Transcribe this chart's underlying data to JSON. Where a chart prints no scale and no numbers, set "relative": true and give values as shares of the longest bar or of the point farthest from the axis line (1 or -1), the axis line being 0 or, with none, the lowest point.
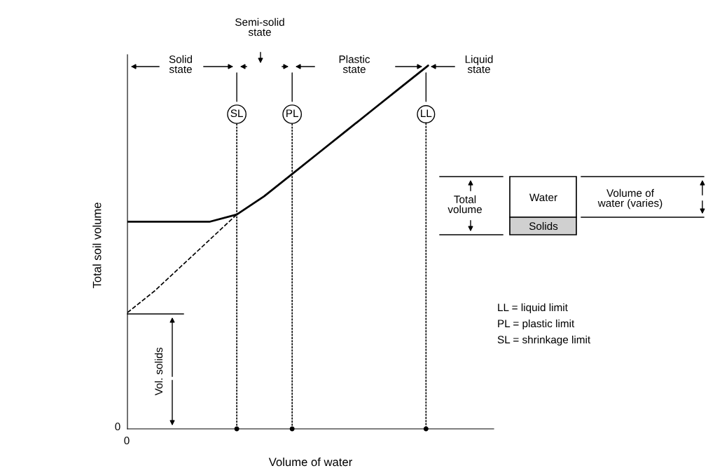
{
  "chart_data": {
    "type": "line",
    "relative": true,
    "xlabel": "Volume of water",
    "ylabel": "Total soil volume",
    "categories": [
      null,
      null,
      null,
      null,
      null,
      null,
      null,
      null,
      null,
      null,
      null,
      null,
      null,
      null
    ],
    "series": [
      {
        "color": "#000000",
        "line_style": "solid",
        "values": [
          0.57,
          0.57,
          0.57,
          0.57,
          0.59,
          0.64,
          0.7,
          0.76,
          0.82,
          0.88,
          0.94,
          1.0,
          null,
          null
        ]
      },
      {
        "color": "#000000",
        "line_style": "dashed",
        "values": [
          0.32,
          0.38,
          0.45,
          0.52,
          0.59,
          null,
          null,
          null,
          null,
          null,
          null,
          null,
          null,
          null
        ]
      }
    ],
    "annotations": [
      "SL",
      "PL",
      "LL",
      "Solid\nstate",
      "Semi-solid\nstate",
      "Plastic\nstate",
      "Liquid\nstate",
      "Total\nvolume",
      "Water",
      "Solids",
      "Volume of\nwater (varies)",
      "LL = liquid limit",
      "PL = plastic limit",
      "SL = shrinkage limit",
      "Vol. solids",
      "0",
      "0"
    ],
    "marker": "none"
  }
}
